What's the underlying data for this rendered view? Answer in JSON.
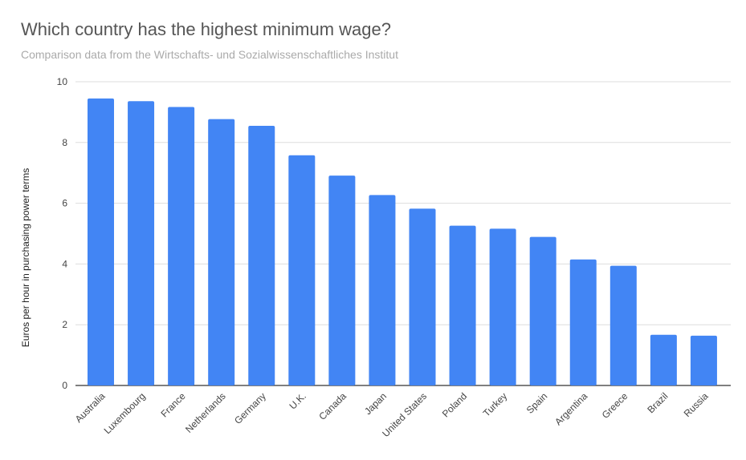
{
  "chart_data": {
    "type": "bar",
    "title": "Which country has the highest minimum wage?",
    "subtitle": "Comparison data from the Wirtschafts- und Sozialwissenschaftliches Institut",
    "xlabel": "",
    "ylabel": "Euros per hour in purchasing power terms",
    "ylim": [
      0,
      10
    ],
    "yticks": [
      0,
      2,
      4,
      6,
      8,
      10
    ],
    "grid": true,
    "bar_color": "#4285f4",
    "categories": [
      "Australia",
      "Luxembourg",
      "France",
      "Netherlands",
      "Germany",
      "U.K.",
      "Canada",
      "Japan",
      "United States",
      "Poland",
      "Turkey",
      "Spain",
      "Argentina",
      "Greece",
      "Brazil",
      "Russia"
    ],
    "values": [
      9.45,
      9.36,
      9.17,
      8.77,
      8.55,
      7.58,
      6.91,
      6.27,
      5.82,
      5.26,
      5.16,
      4.89,
      4.15,
      3.94,
      1.67,
      1.64
    ]
  }
}
